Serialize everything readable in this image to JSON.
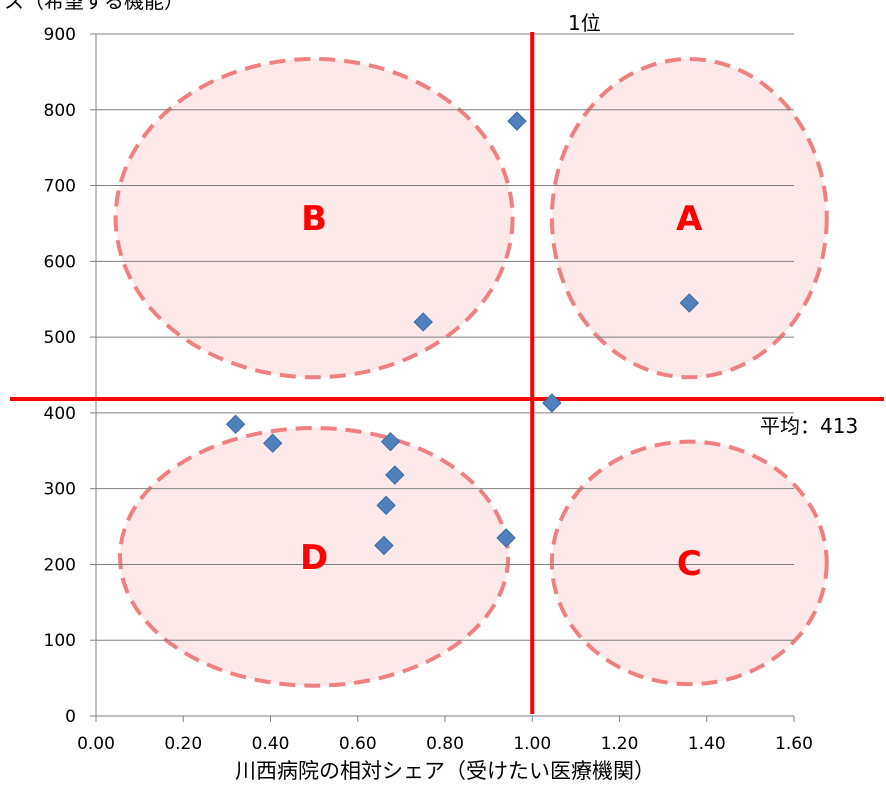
{
  "chart_data": {
    "type": "scatter",
    "title": "",
    "xlabel": "川西病院の相対シェア（受けたい医療機関）",
    "ylabel": "ス（希望する機能）",
    "xlim": [
      0,
      1.6
    ],
    "ylim": [
      0,
      900
    ],
    "x_ticks": [
      "0.00",
      "0.20",
      "0.40",
      "0.60",
      "0.80",
      "1.00",
      "1.20",
      "1.40",
      "1.60"
    ],
    "y_ticks": [
      "0",
      "100",
      "200",
      "300",
      "400",
      "500",
      "600",
      "700",
      "800",
      "900"
    ],
    "grid": "horizontal",
    "series": [
      {
        "x": [
          0.32,
          0.405,
          0.675,
          0.685,
          0.665,
          0.66,
          0.75,
          0.965,
          0.94,
          1.045,
          1.36
        ],
        "y": [
          385,
          360,
          362,
          318,
          278,
          225,
          520,
          785,
          235,
          413,
          545
        ]
      }
    ],
    "reference_lines": {
      "vertical": {
        "x": 1.0,
        "label": "1位"
      },
      "horizontal": {
        "y": 413,
        "label": "平均：413"
      }
    },
    "regions": [
      {
        "label": "A",
        "cx": 1.36,
        "cy": 657,
        "rx": 0.315,
        "ry": 210
      },
      {
        "label": "B",
        "cx": 0.5,
        "cy": 657,
        "rx": 0.455,
        "ry": 210
      },
      {
        "label": "C",
        "cx": 1.36,
        "cy": 202,
        "rx": 0.315,
        "ry": 160
      },
      {
        "label": "D",
        "cx": 0.5,
        "cy": 210,
        "rx": 0.445,
        "ry": 170
      }
    ],
    "colors": {
      "marker": "#4f81bd",
      "reference_line": "#ff0000",
      "region_fill": "#fde4e4",
      "region_stroke": "#f08080",
      "region_label": "#ff0000",
      "gridline": "#808080"
    }
  }
}
